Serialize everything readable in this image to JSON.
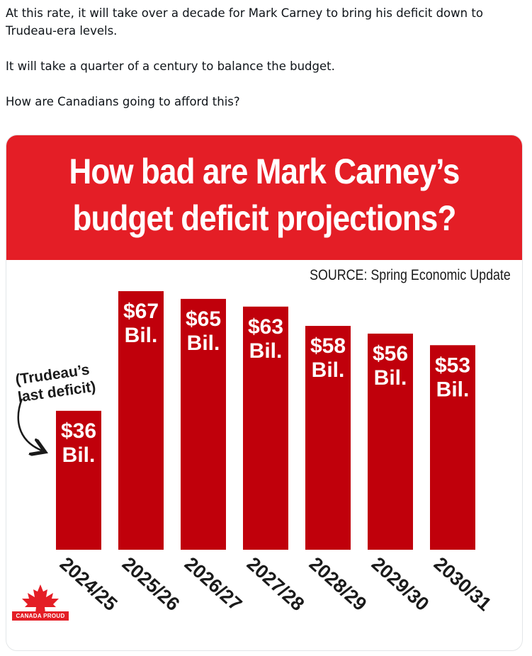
{
  "tweet": {
    "line1": "At this rate, it will take over a decade for Mark Carney to bring his deficit down to Trudeau-era levels.",
    "line2": "It will take a quarter of a century to balance the budget.",
    "line3": "How are Canadians going to afford this?"
  },
  "card": {
    "title_line1": "How bad are Mark Carney’s",
    "title_line2": "budget deficit projections?",
    "source": "SOURCE: Spring Economic Update",
    "logo_text": "CANADA PROUD",
    "colors": {
      "banner": "#e41e26",
      "bar": "#c0000b"
    },
    "logo_icon": "maple-leaf-icon"
  },
  "chart_data": {
    "type": "bar",
    "categories": [
      "2024/25",
      "2025/26",
      "2026/27",
      "2027/28",
      "2028/29",
      "2029/30",
      "2030/31"
    ],
    "values": [
      36,
      67,
      65,
      63,
      58,
      56,
      53
    ],
    "value_labels": [
      [
        "$36",
        "Bil."
      ],
      [
        "$67",
        "Bil."
      ],
      [
        "$65",
        "Bil."
      ],
      [
        "$63",
        "Bil."
      ],
      [
        "$58",
        "Bil."
      ],
      [
        "$56",
        "Bil."
      ],
      [
        "$53",
        "Bil."
      ]
    ],
    "annotation": [
      "(Trudeau’s",
      "last deficit)"
    ],
    "grid": false,
    "legend": "none"
  }
}
